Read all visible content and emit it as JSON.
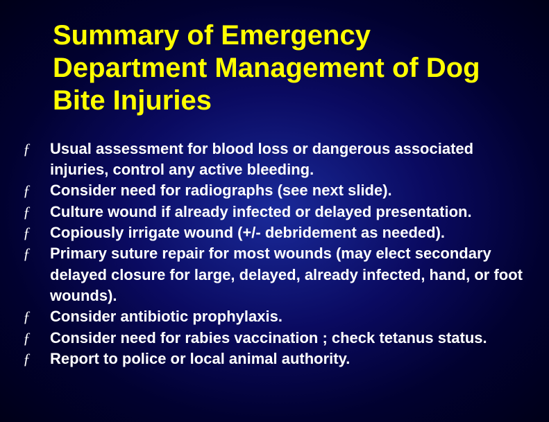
{
  "slide": {
    "title": "Summary of Emergency Department Management of Dog Bite Injuries",
    "title_color": "#ffff00",
    "title_fontsize": 40,
    "title_fontweight": "bold",
    "background": {
      "type": "radial-gradient",
      "center_color": "#1a2a9a",
      "mid_color": "#0a0a60",
      "outer_color": "#010130",
      "edge_color": "#000018"
    },
    "body_text_color": "#ffffff",
    "body_fontsize": 22,
    "body_fontweight": "bold",
    "bullet_glyph": "ƒ",
    "bullets": [
      "Usual assessment for blood loss or dangerous associated injuries, control any active bleeding.",
      "Consider need for radiographs (see next slide).",
      "Culture wound if already infected or delayed presentation.",
      "Copiously irrigate wound (+/- debridement as needed).",
      "Primary suture repair for most wounds (may elect secondary delayed closure for large, delayed, already infected, hand, or foot wounds).",
      "Consider antibiotic prophylaxis.",
      "Consider need for rabies vaccination ; check tetanus status.",
      "Report to police or local animal authority."
    ]
  }
}
